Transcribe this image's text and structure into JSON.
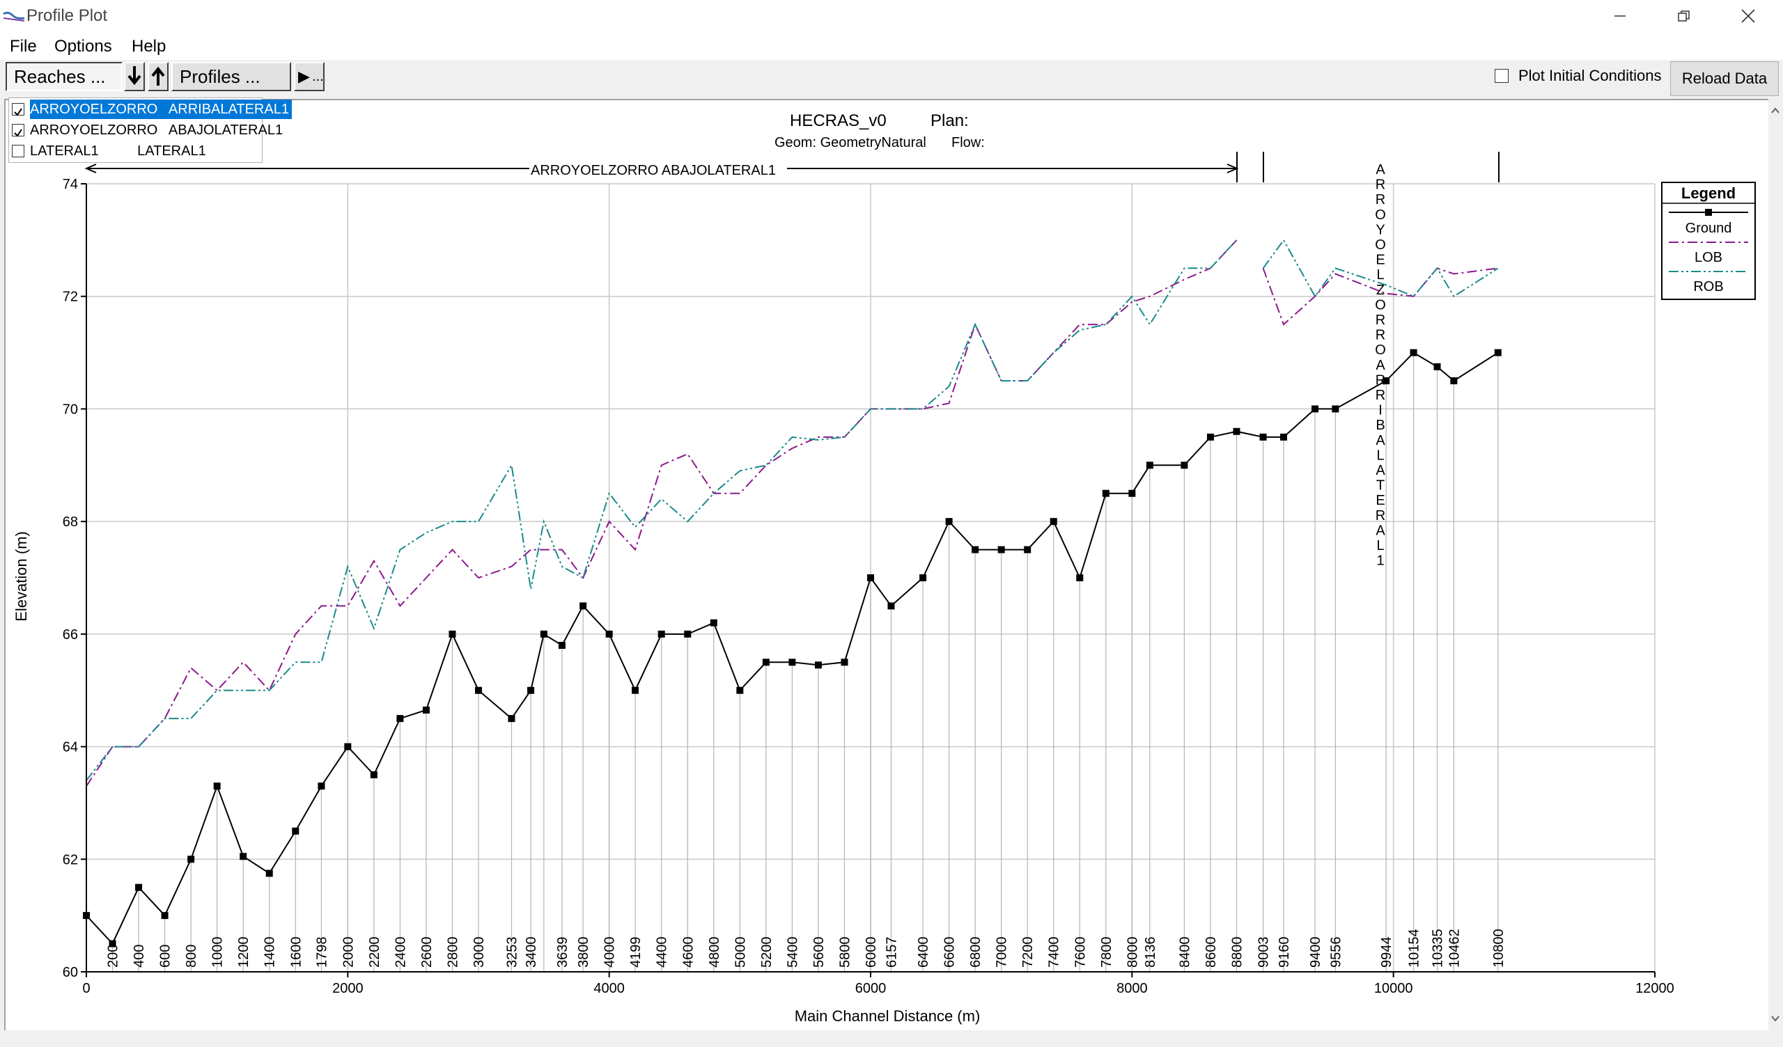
{
  "window": {
    "title": "Profile Plot"
  },
  "menu": [
    "File",
    "Options",
    "Help"
  ],
  "toolbar": {
    "reaches_label": "Reaches ...",
    "profiles_label": "Profiles ...",
    "play_label": "...",
    "plot_initial_conditions": "Plot Initial Conditions",
    "plot_initial_checked": false,
    "reload_label": "Reload Data"
  },
  "reaches": [
    {
      "label": "ARROYOELZORRO   ARRIBALATERAL1",
      "checked": true,
      "selected": true
    },
    {
      "label": "ARROYOELZORRO   ABAJOLATERAL1",
      "checked": true,
      "selected": false
    },
    {
      "label": "LATERAL1          LATERAL1",
      "checked": false,
      "selected": false
    }
  ],
  "plot": {
    "title_left": "HECRAS_v0",
    "title_right": "Plan:",
    "geom": "Geom: GeometryNatural",
    "flow": "Flow:",
    "reach_label_lower": "ARROYOELZORRO ABAJOLATERAL1",
    "reach_label_upper": "ARROYOELZORROARRIBALATERAL1",
    "legend_title": "Legend"
  },
  "chart_data": {
    "type": "line",
    "xlabel": "Main Channel Distance (m)",
    "ylabel": "Elevation (m)",
    "xlim": [
      0,
      12000
    ],
    "ylim": [
      60,
      74
    ],
    "xticks": [
      "0",
      "2000",
      "4000",
      "6000",
      "8000",
      "10000",
      "12000"
    ],
    "yticks": [
      "60",
      "62",
      "64",
      "66",
      "68",
      "70",
      "72",
      "74"
    ],
    "grid": true,
    "legend_position": "top-right",
    "station_labels": [
      "200",
      "400",
      "600",
      "800",
      "1000",
      "1200",
      "1400",
      "1600",
      "1798",
      "2000",
      "2200",
      "2400",
      "2600",
      "2800",
      "3000",
      "3253",
      "3400",
      "3639",
      "3800",
      "4000",
      "4199",
      "4400",
      "4600",
      "4800",
      "5000",
      "5200",
      "5400",
      "5600",
      "5800",
      "6000",
      "6157",
      "6400",
      "6600",
      "6800",
      "7000",
      "7200",
      "7400",
      "7600",
      "7800",
      "8000",
      "8136",
      "8400",
      "8600",
      "8800",
      "9003",
      "9160",
      "9400",
      "9556",
      "9944",
      "10154",
      "10335",
      "10462",
      "10800"
    ],
    "series": [
      {
        "name": "Ground",
        "color": "#000000",
        "style": "solid-square-markers",
        "segments": [
          [
            [
              0,
              61.0
            ],
            [
              200,
              60.5
            ],
            [
              400,
              61.5
            ],
            [
              600,
              61.0
            ],
            [
              800,
              62.0
            ],
            [
              1000,
              63.3
            ],
            [
              1200,
              62.05
            ],
            [
              1400,
              61.75
            ],
            [
              1600,
              62.5
            ],
            [
              1798,
              63.3
            ],
            [
              2000,
              64.0
            ],
            [
              2200,
              63.5
            ],
            [
              2400,
              64.5
            ],
            [
              2600,
              64.65
            ],
            [
              2800,
              66.0
            ],
            [
              3000,
              65.0
            ],
            [
              3253,
              64.5
            ],
            [
              3400,
              65.0
            ],
            [
              3500,
              66.0
            ],
            [
              3639,
              65.8
            ],
            [
              3800,
              66.5
            ],
            [
              4000,
              66.0
            ],
            [
              4199,
              65.0
            ],
            [
              4400,
              66.0
            ],
            [
              4600,
              66.0
            ],
            [
              4800,
              66.2
            ],
            [
              5000,
              65.0
            ],
            [
              5200,
              65.5
            ],
            [
              5400,
              65.5
            ],
            [
              5600,
              65.45
            ],
            [
              5800,
              65.5
            ],
            [
              6000,
              67.0
            ],
            [
              6157,
              66.5
            ],
            [
              6400,
              67.0
            ],
            [
              6600,
              68.0
            ],
            [
              6800,
              67.5
            ],
            [
              7000,
              67.5
            ],
            [
              7200,
              67.5
            ],
            [
              7400,
              68.0
            ],
            [
              7600,
              67.0
            ],
            [
              7800,
              68.5
            ],
            [
              8000,
              68.5
            ],
            [
              8136,
              69.0
            ],
            [
              8400,
              69.0
            ],
            [
              8600,
              69.5
            ],
            [
              8800,
              69.6
            ],
            [
              9003,
              69.5
            ],
            [
              9160,
              69.5
            ],
            [
              9400,
              70.0
            ],
            [
              9556,
              70.0
            ],
            [
              9944,
              70.5
            ],
            [
              10154,
              71.0
            ],
            [
              10335,
              70.75
            ],
            [
              10462,
              70.5
            ],
            [
              10800,
              71.0
            ]
          ]
        ]
      },
      {
        "name": "LOB",
        "color": "#8b1a8b",
        "style": "dash-dot",
        "segments": [
          [
            [
              0,
              63.3
            ],
            [
              200,
              64.0
            ],
            [
              400,
              64.0
            ],
            [
              600,
              64.5
            ],
            [
              800,
              65.4
            ],
            [
              1000,
              65.0
            ],
            [
              1200,
              65.5
            ],
            [
              1400,
              65.0
            ],
            [
              1600,
              66.0
            ],
            [
              1798,
              66.5
            ],
            [
              2000,
              66.5
            ],
            [
              2200,
              67.3
            ],
            [
              2400,
              66.5
            ],
            [
              2600,
              67.0
            ],
            [
              2800,
              67.5
            ],
            [
              3000,
              67.0
            ],
            [
              3253,
              67.2
            ],
            [
              3400,
              67.5
            ],
            [
              3639,
              67.5
            ],
            [
              3800,
              67.0
            ],
            [
              4000,
              68.0
            ],
            [
              4199,
              67.5
            ],
            [
              4400,
              69.0
            ],
            [
              4600,
              69.2
            ],
            [
              4800,
              68.5
            ],
            [
              5000,
              68.5
            ],
            [
              5200,
              69.0
            ],
            [
              5400,
              69.3
            ],
            [
              5600,
              69.5
            ],
            [
              5800,
              69.5
            ],
            [
              6000,
              70.0
            ],
            [
              6157,
              70.0
            ],
            [
              6400,
              70.0
            ],
            [
              6600,
              70.1
            ],
            [
              6800,
              71.5
            ],
            [
              7000,
              70.5
            ],
            [
              7200,
              70.5
            ],
            [
              7400,
              71.0
            ],
            [
              7600,
              71.5
            ],
            [
              7800,
              71.5
            ],
            [
              8000,
              71.9
            ],
            [
              8136,
              72.0
            ],
            [
              8400,
              72.3
            ],
            [
              8600,
              72.5
            ],
            [
              8800,
              73.0
            ]
          ],
          [
            [
              9003,
              72.5
            ],
            [
              9160,
              71.5
            ],
            [
              9400,
              72.0
            ],
            [
              9556,
              72.4
            ],
            [
              9944,
              72.05
            ],
            [
              10154,
              72.0
            ],
            [
              10335,
              72.5
            ],
            [
              10462,
              72.4
            ],
            [
              10800,
              72.5
            ]
          ]
        ]
      },
      {
        "name": "ROB",
        "color": "#1a8a8a",
        "style": "dash-dot-dot",
        "segments": [
          [
            [
              0,
              63.4
            ],
            [
              200,
              64.0
            ],
            [
              400,
              64.0
            ],
            [
              600,
              64.5
            ],
            [
              800,
              64.5
            ],
            [
              1000,
              65.0
            ],
            [
              1200,
              65.0
            ],
            [
              1400,
              65.0
            ],
            [
              1600,
              65.5
            ],
            [
              1798,
              65.5
            ],
            [
              2000,
              67.2
            ],
            [
              2200,
              66.1
            ],
            [
              2400,
              67.5
            ],
            [
              2600,
              67.8
            ],
            [
              2800,
              68.0
            ],
            [
              3000,
              68.0
            ],
            [
              3253,
              69.0
            ],
            [
              3400,
              66.8
            ],
            [
              3500,
              68.0
            ],
            [
              3639,
              67.2
            ],
            [
              3800,
              67.0
            ],
            [
              4000,
              68.5
            ],
            [
              4199,
              67.9
            ],
            [
              4400,
              68.4
            ],
            [
              4600,
              68.0
            ],
            [
              4800,
              68.5
            ],
            [
              5000,
              68.9
            ],
            [
              5200,
              69.0
            ],
            [
              5400,
              69.5
            ],
            [
              5600,
              69.45
            ],
            [
              5800,
              69.5
            ],
            [
              6000,
              70.0
            ],
            [
              6157,
              70.0
            ],
            [
              6400,
              70.0
            ],
            [
              6600,
              70.4
            ],
            [
              6800,
              71.5
            ],
            [
              7000,
              70.5
            ],
            [
              7200,
              70.5
            ],
            [
              7400,
              71.0
            ],
            [
              7600,
              71.4
            ],
            [
              7800,
              71.5
            ],
            [
              8000,
              72.0
            ],
            [
              8136,
              71.5
            ],
            [
              8400,
              72.5
            ],
            [
              8600,
              72.5
            ],
            [
              8800,
              73.0
            ]
          ],
          [
            [
              9003,
              72.5
            ],
            [
              9160,
              73.0
            ],
            [
              9400,
              72.0
            ],
            [
              9556,
              72.5
            ],
            [
              9944,
              72.2
            ],
            [
              10154,
              72.0
            ],
            [
              10335,
              72.5
            ],
            [
              10462,
              72.0
            ],
            [
              10800,
              72.5
            ]
          ]
        ]
      }
    ]
  }
}
